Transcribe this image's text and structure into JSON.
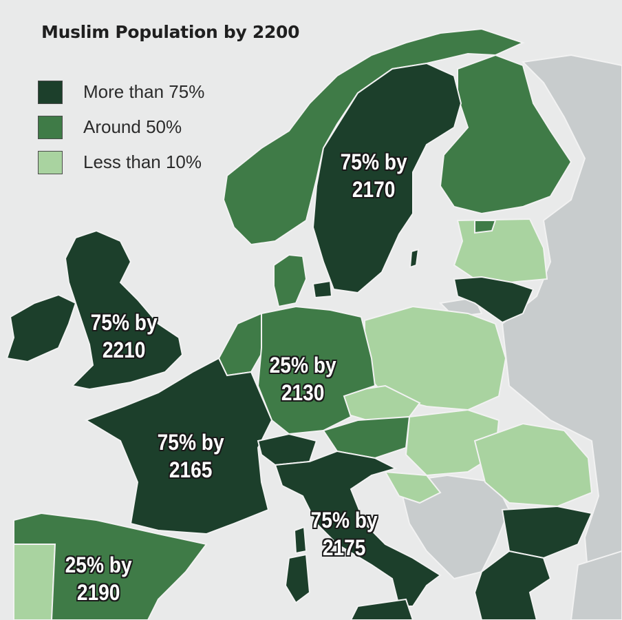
{
  "title": "Muslim Population by 2200",
  "legend": [
    {
      "label": "More than 75%",
      "color": "#1c3f2b"
    },
    {
      "label": "Around 50%",
      "color": "#3f7b47"
    },
    {
      "label": "Less than 10%",
      "color": "#a9d3a0"
    }
  ],
  "colors": {
    "sea": "#e9eaea",
    "no_data": "#c8cccd",
    "border": "#f2f2f2"
  },
  "labels": {
    "scandinavia": {
      "line1": "75% by",
      "line2": "2170"
    },
    "britain": {
      "line1": "75% by",
      "line2": "2210"
    },
    "germany": {
      "line1": "25% by",
      "line2": "2130"
    },
    "france": {
      "line1": "75% by",
      "line2": "2165"
    },
    "italy": {
      "line1": "75% by",
      "line2": "2175"
    },
    "iberia": {
      "line1": "25% by",
      "line2": "2190"
    }
  }
}
